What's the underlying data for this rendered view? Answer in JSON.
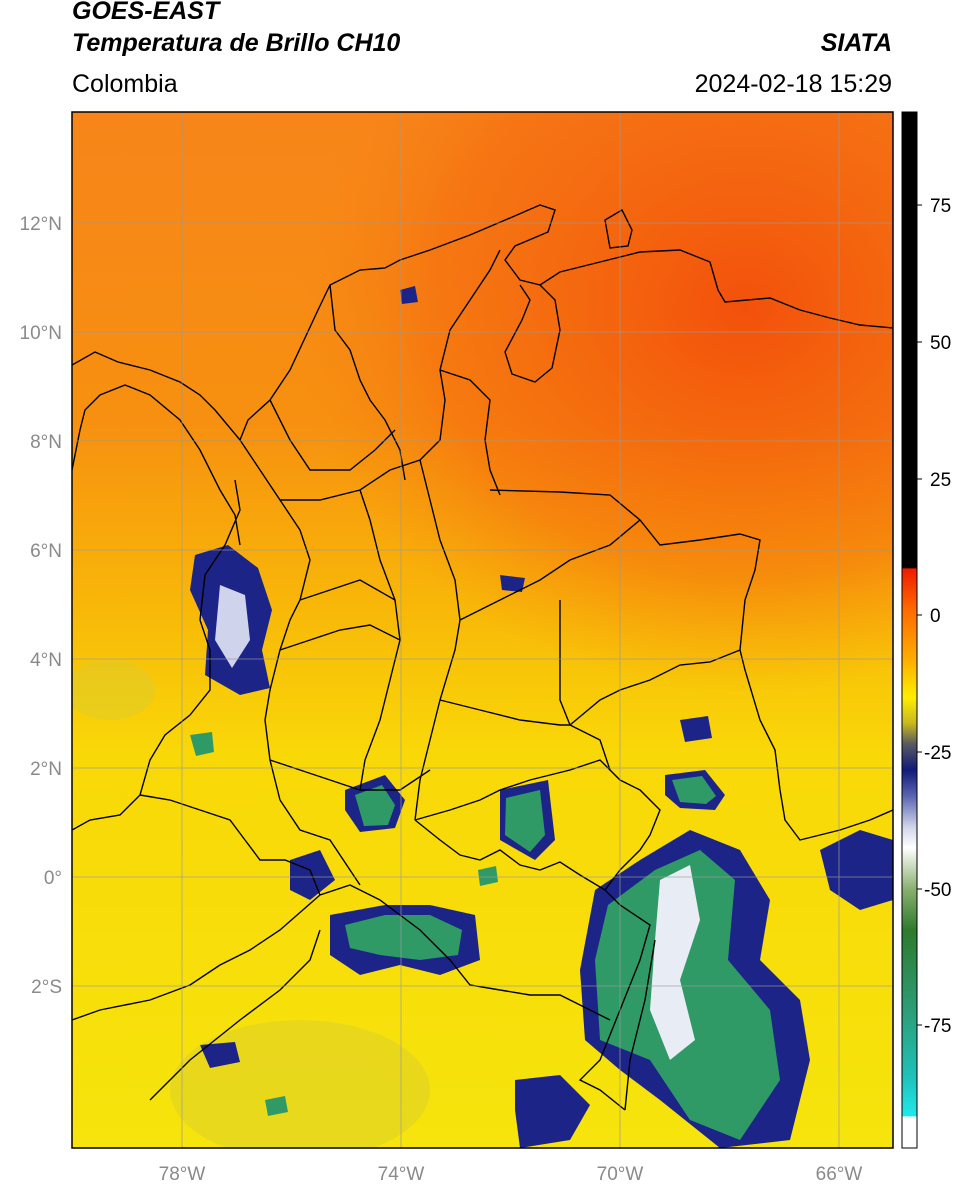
{
  "header": {
    "satellite": "GOES-EAST",
    "product": "Temperatura de Brillo CH10",
    "region": "Colombia",
    "agency": "SIATA",
    "timestamp": "2024-02-18 15:29"
  },
  "axes": {
    "lat_labels": [
      "12°N",
      "10°N",
      "8°N",
      "6°N",
      "4°N",
      "2°N",
      "0°",
      "2°S"
    ],
    "lon_labels": [
      "78°W",
      "74°W",
      "70°W",
      "66°W"
    ]
  },
  "colorbar": {
    "ticks": [
      "75",
      "50",
      "25",
      "0",
      "-25",
      "-50",
      "-75"
    ],
    "colors": {
      "black": "#000000",
      "red": "#ee2200",
      "orange": "#ff8c00",
      "yellow": "#ffee00",
      "olive": "#a8a030",
      "navy": "#101a7a",
      "white": "#ffffff",
      "green": "#2e8a5c",
      "cyan": "#20e0e0"
    }
  },
  "map_colors": {
    "ocean_north": "#f77a12",
    "land_north": "#f5641a",
    "yellow_south": "#f8dc08",
    "cloud_navy": "#1c2488",
    "cloud_green": "#2f9a66",
    "border": "#000000",
    "grid": "#9a9a9a"
  }
}
